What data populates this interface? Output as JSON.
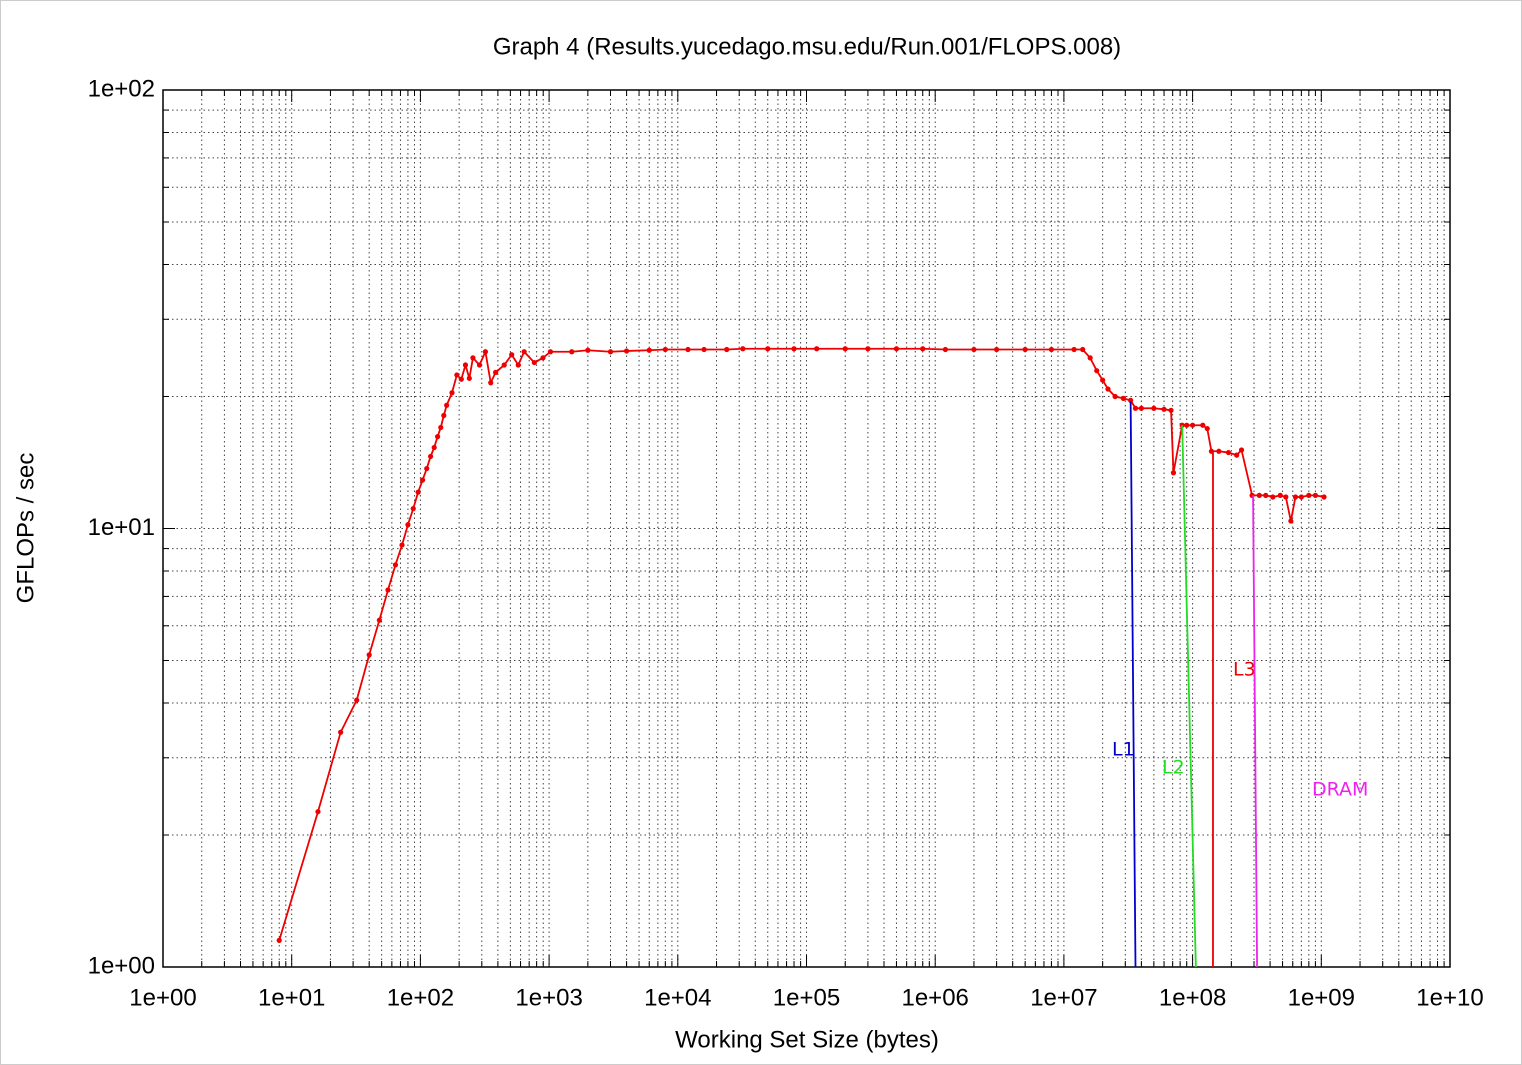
{
  "chart_data": {
    "type": "line",
    "title": "Graph 4 (Results.yucedago.msu.edu/Run.001/FLOPS.008)",
    "xlabel": "Working Set Size (bytes)",
    "ylabel": "GFLOPs / sec",
    "xscale": "log",
    "yscale": "log",
    "grid": true,
    "xlim": [
      1,
      10000000000
    ],
    "ylim": [
      1,
      100
    ],
    "xticks": [
      {
        "value": 1,
        "label": "1e+00"
      },
      {
        "value": 10,
        "label": "1e+01"
      },
      {
        "value": 100,
        "label": "1e+02"
      },
      {
        "value": 1000,
        "label": "1e+03"
      },
      {
        "value": 10000,
        "label": "1e+04"
      },
      {
        "value": 100000,
        "label": "1e+05"
      },
      {
        "value": 1000000,
        "label": "1e+06"
      },
      {
        "value": 10000000,
        "label": "1e+07"
      },
      {
        "value": 100000000,
        "label": "1e+08"
      },
      {
        "value": 1000000000,
        "label": "1e+09"
      },
      {
        "value": 10000000000,
        "label": "1e+10"
      }
    ],
    "yticks": [
      {
        "value": 1,
        "label": "1e+00"
      },
      {
        "value": 10,
        "label": "1e+01"
      },
      {
        "value": 100,
        "label": "1e+02"
      }
    ],
    "series": [
      {
        "color": "#ee0000",
        "x": [
          8,
          16,
          24,
          32,
          40,
          48,
          56,
          64,
          72,
          80,
          88,
          96,
          104,
          112,
          120,
          128,
          136,
          144,
          152,
          160,
          176,
          192,
          208,
          224,
          240,
          256,
          288,
          320,
          352,
          384,
          448,
          512,
          576,
          640,
          768,
          896,
          1024,
          1500,
          2000,
          3000,
          4000,
          6000,
          8000,
          12000,
          16000,
          24000,
          32000,
          50000,
          80000,
          120000,
          200000,
          300000,
          500000,
          800000,
          1200000,
          2000000,
          3000000,
          5000000,
          8000000,
          12000000,
          14000000,
          16000000,
          18000000,
          20000000,
          22000000,
          25000000,
          29000000,
          33000000,
          36000000,
          40000000,
          50000000,
          60000000,
          68000000,
          71000000,
          83000000,
          90000000,
          100000000,
          120000000,
          130000000,
          140000000,
          160000000,
          190000000,
          220000000,
          240000000,
          290000000,
          330000000,
          370000000,
          420000000,
          480000000,
          530000000,
          580000000,
          630000000,
          700000000,
          800000000,
          900000000,
          1050000000
        ],
        "values": [
          1.15,
          2.26,
          3.43,
          4.06,
          5.15,
          6.18,
          7.24,
          8.26,
          9.17,
          10.2,
          11.1,
          12.1,
          12.9,
          13.7,
          14.6,
          15.3,
          16.2,
          17.0,
          18.1,
          19.1,
          20.4,
          22.4,
          21.9,
          23.6,
          22.0,
          24.5,
          23.6,
          25.3,
          21.5,
          22.7,
          23.6,
          24.9,
          23.6,
          25.3,
          23.9,
          24.5,
          25.3,
          25.3,
          25.5,
          25.3,
          25.4,
          25.5,
          25.6,
          25.6,
          25.6,
          25.6,
          25.7,
          25.7,
          25.7,
          25.7,
          25.7,
          25.7,
          25.7,
          25.7,
          25.6,
          25.6,
          25.6,
          25.6,
          25.6,
          25.6,
          25.6,
          24.5,
          22.9,
          21.8,
          20.8,
          20.0,
          19.8,
          19.6,
          18.8,
          18.8,
          18.8,
          18.7,
          18.6,
          13.4,
          17.2,
          17.2,
          17.2,
          17.2,
          16.9,
          15.0,
          15.0,
          14.9,
          14.7,
          15.1,
          11.9,
          11.9,
          11.9,
          11.8,
          11.9,
          11.8,
          10.4,
          11.8,
          11.8,
          11.9,
          11.9,
          11.8
        ]
      },
      {
        "name": "L1",
        "color": "#0000cc",
        "x": [
          33000000,
          36000000
        ],
        "values": [
          19.5,
          1
        ]
      },
      {
        "name": "L2",
        "color": "#22dd22",
        "x": [
          83000000,
          106000000
        ],
        "values": [
          17.2,
          1
        ]
      },
      {
        "name": "L3",
        "color": "#ee0000",
        "x": [
          144000000,
          144000000
        ],
        "values": [
          14.9,
          1
        ]
      },
      {
        "name": "DRAM",
        "color": "#ee22ee",
        "x": [
          295000000,
          317000000
        ],
        "values": [
          11.9,
          1
        ]
      }
    ]
  }
}
